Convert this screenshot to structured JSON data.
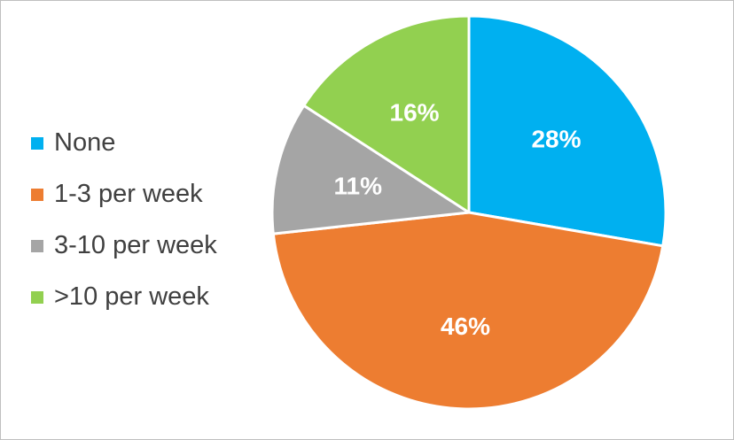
{
  "chart_data": {
    "type": "pie",
    "categories": [
      "None",
      "1-3 per week",
      "3-10 per week",
      ">10 per week"
    ],
    "values": [
      28,
      46,
      11,
      16
    ],
    "data_labels": [
      "28%",
      "46%",
      "11%",
      "16%"
    ],
    "colors": [
      "#00B0F0",
      "#ED7D31",
      "#A5A5A5",
      "#92D050"
    ],
    "legend_position": "left",
    "start_angle": "top, clockwise"
  }
}
